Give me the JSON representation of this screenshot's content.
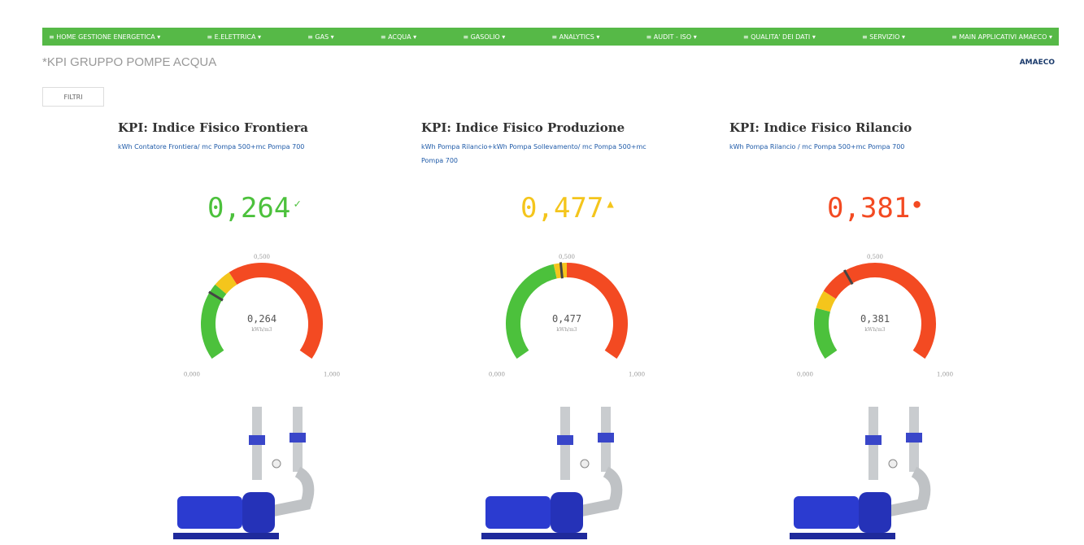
{
  "nav": {
    "items": [
      "HOME GESTIONE ENERGETICA",
      "E.ELETTRICA",
      "GAS",
      "ACQUA",
      "GASOLIO",
      "ANALYTICS",
      "AUDIT - ISO",
      "QUALITA' DEI DATI",
      "SERVIZIO",
      "MAIN APPLICATIVI AMAECO"
    ]
  },
  "header": {
    "title": "*KPI GRUPPO POMPE ACQUA",
    "logo": "AMAECO",
    "filter_button": "FILTRI"
  },
  "gauge_scale": {
    "min": {
      "value": 0,
      "label": "0,000"
    },
    "mid": {
      "value": 0.5,
      "label": "0,500"
    },
    "max": {
      "value": 1,
      "label": "1,000"
    },
    "unit": "kWh/m3"
  },
  "kpis": [
    {
      "title": "KPI: Indice Fisico Frontiera",
      "subtitle": "kWh Contatore Frontiera/ mc Pompa 500+mc Pompa 700",
      "value": {
        "value": 0.264,
        "label": "0,264"
      },
      "color": "#4cc13c",
      "bands": [
        {
          "from": 0,
          "to": 0.3,
          "color": "#4cc13c"
        },
        {
          "from": 0.3,
          "to": 0.37,
          "color": "#f4c51c"
        },
        {
          "from": 0.37,
          "to": 1,
          "color": "#f34a22"
        }
      ]
    },
    {
      "title": "KPI: Indice Fisico Produzione",
      "subtitle": "kWh Pompa Rilancio+kWh Pompa Sollevamento/ mc Pompa 500+mc Pompa 700",
      "value": {
        "value": 0.477,
        "label": "0,477"
      },
      "color": "#f4c51c",
      "bands": [
        {
          "from": 0,
          "to": 0.45,
          "color": "#4cc13c"
        },
        {
          "from": 0.45,
          "to": 0.5,
          "color": "#f4c51c"
        },
        {
          "from": 0.5,
          "to": 1,
          "color": "#f34a22"
        }
      ]
    },
    {
      "title": "KPI: Indice Fisico Rilancio",
      "subtitle": "kWh Pompa Rilancio / mc Pompa 500+mc Pompa 700",
      "value": {
        "value": 0.381,
        "label": "0,381"
      },
      "color": "#f34a22",
      "bands": [
        {
          "from": 0,
          "to": 0.2,
          "color": "#4cc13c"
        },
        {
          "from": 0.2,
          "to": 0.27,
          "color": "#f4c51c"
        },
        {
          "from": 0.27,
          "to": 1,
          "color": "#f34a22"
        }
      ]
    }
  ]
}
